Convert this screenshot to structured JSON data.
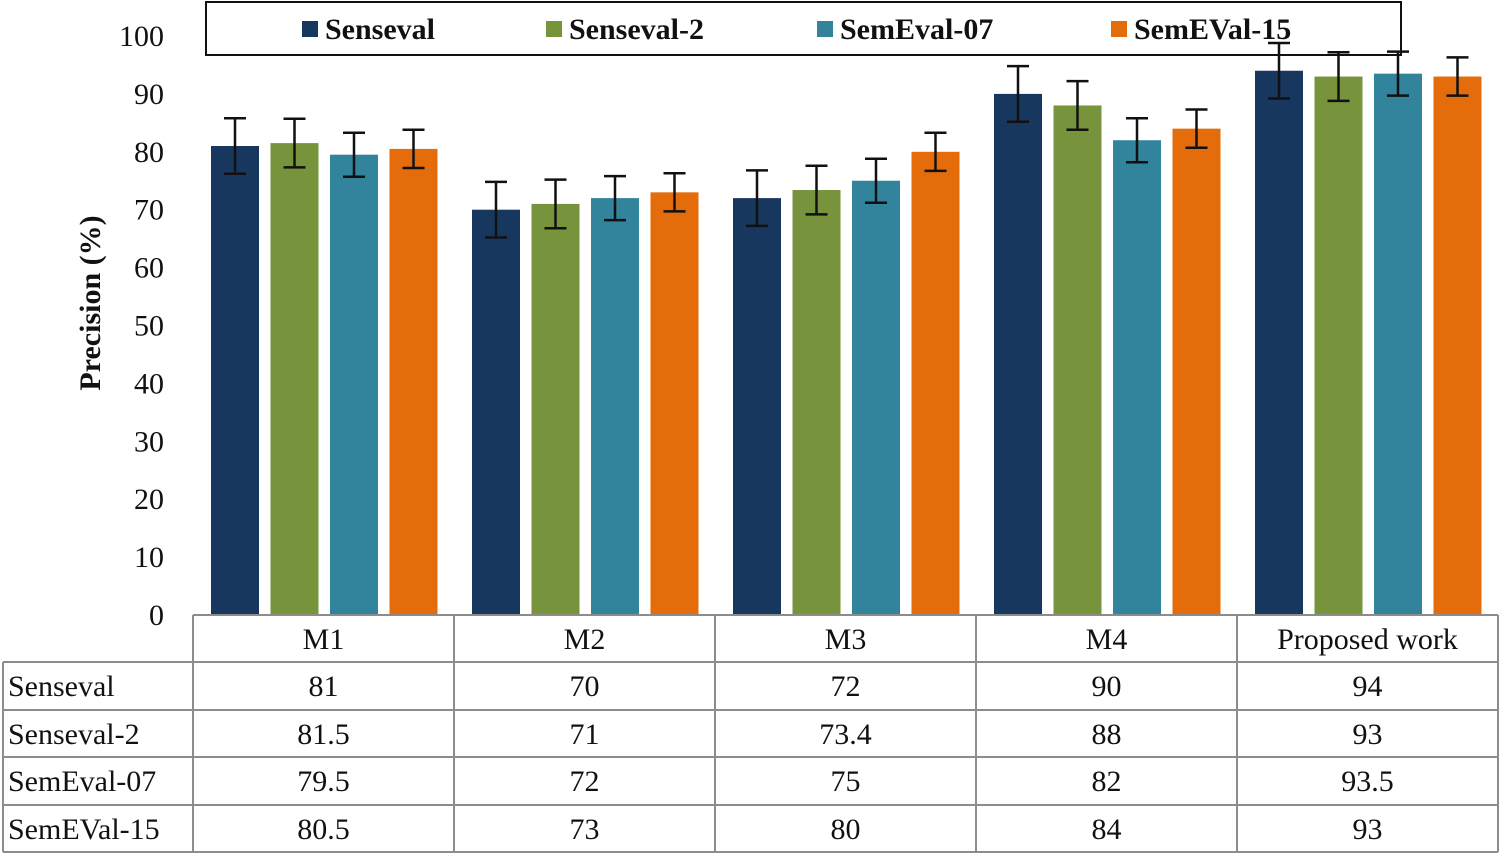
{
  "chart_data": {
    "type": "bar",
    "title": "",
    "xlabel": "",
    "ylabel": "Precision (%)",
    "ylim": [
      0,
      100
    ],
    "yticks": [
      0,
      10,
      20,
      30,
      40,
      50,
      60,
      70,
      80,
      90,
      100
    ],
    "categories": [
      "M1",
      "M2",
      "M3",
      "M4",
      "Proposed work"
    ],
    "series": [
      {
        "name": "Senseval",
        "color": "#17375e",
        "values": [
          81,
          70,
          72,
          90,
          94
        ],
        "error": [
          4.8,
          4.8,
          4.8,
          4.8,
          4.8
        ]
      },
      {
        "name": "Senseval-2",
        "color": "#77933c",
        "values": [
          81.5,
          71,
          73.4,
          88,
          93
        ],
        "error": [
          4.2,
          4.2,
          4.2,
          4.2,
          4.2
        ]
      },
      {
        "name": "SemEval-07",
        "color": "#31849b",
        "values": [
          79.5,
          72,
          75,
          82,
          93.5
        ],
        "error": [
          3.8,
          3.8,
          3.8,
          3.8,
          3.8
        ]
      },
      {
        "name": "SemEVal-15",
        "color": "#e46c0a",
        "values": [
          80.5,
          73,
          80,
          84,
          93
        ],
        "error": [
          3.3,
          3.3,
          3.3,
          3.3,
          3.3
        ]
      }
    ],
    "data_table": {
      "row_labels": [
        "Senseval",
        "Senseval-2",
        "SemEval-07",
        "SemEVal-15"
      ],
      "rows": [
        [
          "81",
          "70",
          "72",
          "90",
          "94"
        ],
        [
          "81.5",
          "71",
          "73.4",
          "88",
          "93"
        ],
        [
          "79.5",
          "72",
          "75",
          "82",
          "93.5"
        ],
        [
          "80.5",
          "73",
          "80",
          "84",
          "93"
        ]
      ]
    },
    "legend_position": "top"
  }
}
